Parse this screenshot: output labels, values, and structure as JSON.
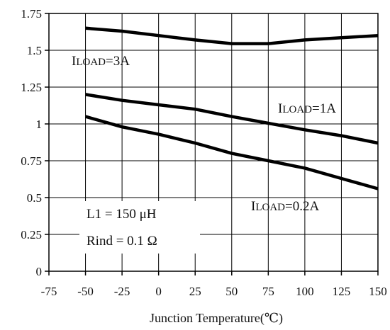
{
  "chart_data": {
    "type": "line",
    "xlabel": "Junction Temperature(℃)",
    "ylabel": "",
    "xlim": [
      -75,
      150
    ],
    "ylim": [
      0,
      1.75
    ],
    "x_ticks": [
      -75,
      -50,
      -25,
      0,
      25,
      50,
      75,
      100,
      125,
      150
    ],
    "x_tick_labels": [
      "-75",
      "-50",
      "-25",
      "0",
      "25",
      "50",
      "75",
      "100",
      "125",
      "150"
    ],
    "y_ticks": [
      0,
      0.25,
      0.5,
      0.75,
      1,
      1.25,
      1.5,
      1.75
    ],
    "y_tick_labels": [
      "0",
      "0.25",
      "0.5",
      "0.75",
      "1",
      "1.25",
      "1.5",
      "1.75"
    ],
    "grid": true,
    "series": [
      {
        "name": "ILOAD=3A",
        "x": [
          -50,
          -25,
          0,
          25,
          50,
          75,
          100,
          125,
          150
        ],
        "y": [
          1.65,
          1.63,
          1.6,
          1.57,
          1.545,
          1.545,
          1.57,
          1.585,
          1.6
        ]
      },
      {
        "name": "ILOAD=1A",
        "x": [
          -50,
          -25,
          0,
          25,
          50,
          75,
          100,
          125,
          150
        ],
        "y": [
          1.2,
          1.16,
          1.13,
          1.1,
          1.05,
          1.005,
          0.96,
          0.92,
          0.87
        ]
      },
      {
        "name": "ILOAD=0.2A",
        "x": [
          -50,
          -25,
          0,
          25,
          50,
          75,
          100,
          125,
          150
        ],
        "y": [
          1.05,
          0.98,
          0.93,
          0.87,
          0.8,
          0.75,
          0.7,
          0.63,
          0.56
        ]
      }
    ],
    "annotations": {
      "series_labels": [
        {
          "prefix": "I",
          "sub": "LOAD",
          "suffix": "=3A"
        },
        {
          "prefix": "I",
          "sub": "LOAD",
          "suffix": "=1A"
        },
        {
          "prefix": "I",
          "sub": "LOAD",
          "suffix": "=0.2A"
        }
      ],
      "params": [
        "L1 = 150 μH",
        "Rind = 0.1 Ω"
      ]
    }
  }
}
